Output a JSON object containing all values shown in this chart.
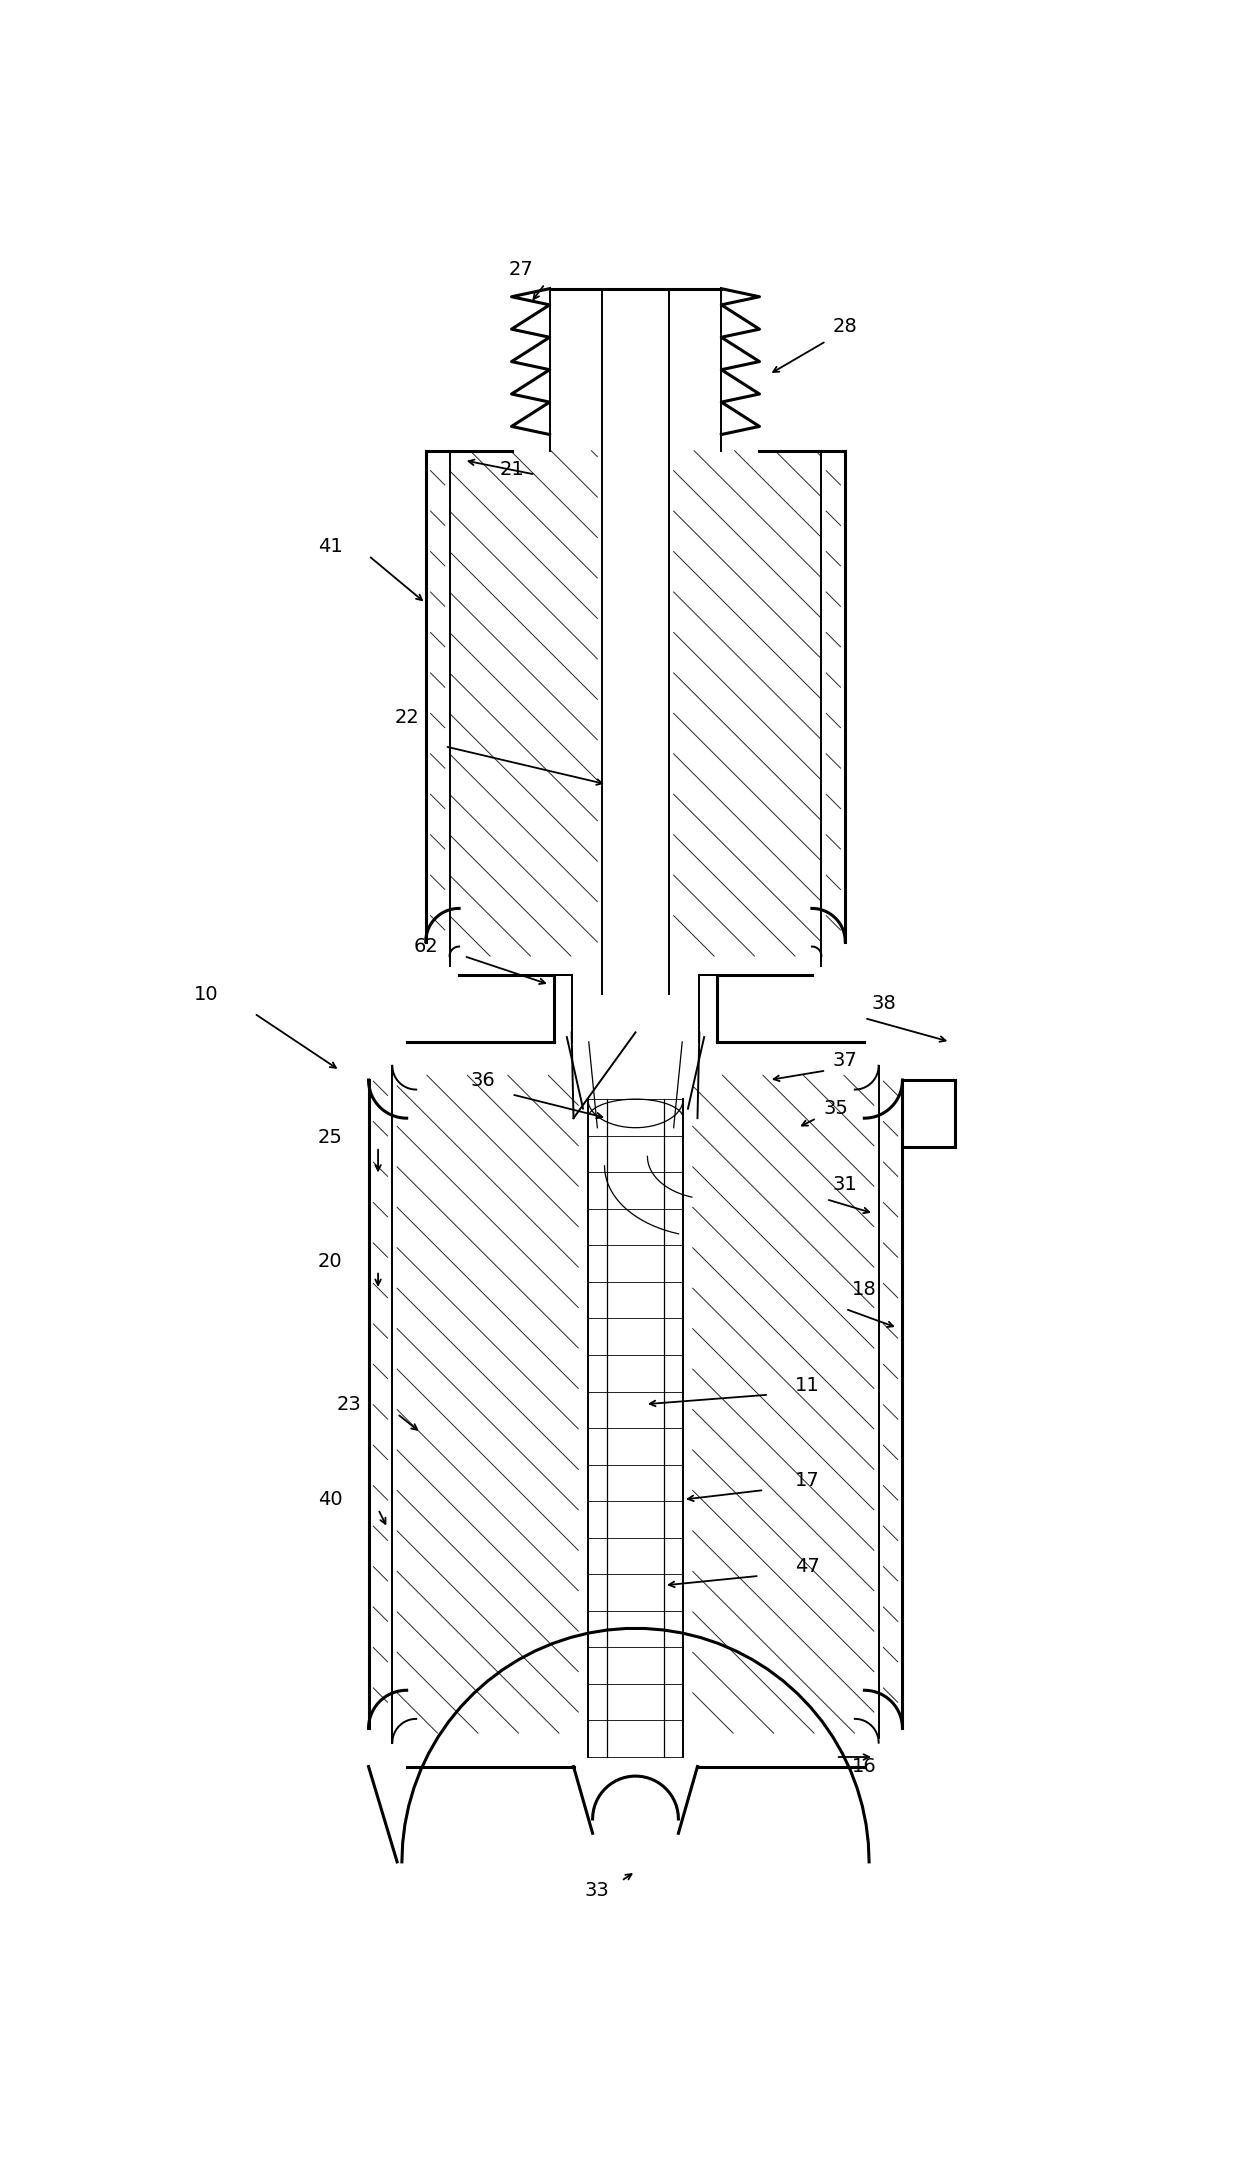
{
  "bg_color": "#ffffff",
  "line_color": "#000000",
  "figsize": [
    12.4,
    21.67
  ],
  "dpi": 100,
  "lw_outer": 2.2,
  "lw_inner": 1.4,
  "lw_thin": 0.9,
  "lw_hatch": 0.7,
  "lw_arrow": 1.3,
  "font_size": 14
}
